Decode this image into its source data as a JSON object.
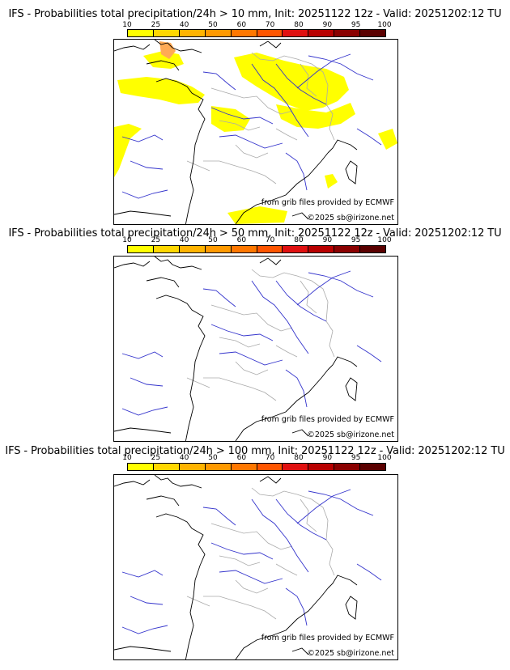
{
  "colorbar": {
    "ticks": [
      "10",
      "25",
      "40",
      "50",
      "60",
      "70",
      "80",
      "90",
      "95",
      "100"
    ],
    "colors": [
      "#ffff00",
      "#ffd700",
      "#ffb300",
      "#ff9900",
      "#ff7700",
      "#ff5500",
      "#e01010",
      "#b80000",
      "#8a0000",
      "#5a0000"
    ]
  },
  "panels": [
    {
      "title": "IFS - Probabilities total precipitation/24h > 10 mm, Init: 20251122 12z - Valid: 20251202:12 TU",
      "source": "from grib files provided by ECMWF",
      "copyright": "©2025 sb@irizone.net"
    },
    {
      "title": "IFS - Probabilities total precipitation/24h > 50 mm, Init: 20251122 12z - Valid: 20251202:12 TU",
      "source": "from grib files provided by ECMWF",
      "copyright": "©2025 sb@irizone.net"
    },
    {
      "title": "IFS - Probabilities total precipitation/24h > 100 mm, Init: 20251122 12z - Valid: 20251202:12 TU",
      "source": "from grib files provided by ECMWF",
      "copyright": "©2025 sb@irizone.net"
    }
  ],
  "colors": {
    "coast": "#000000",
    "rivers": "#3333cc",
    "borders": "#aaaaaa",
    "high_prob": "#ffff00",
    "mid_prob": "#ffaa55"
  }
}
